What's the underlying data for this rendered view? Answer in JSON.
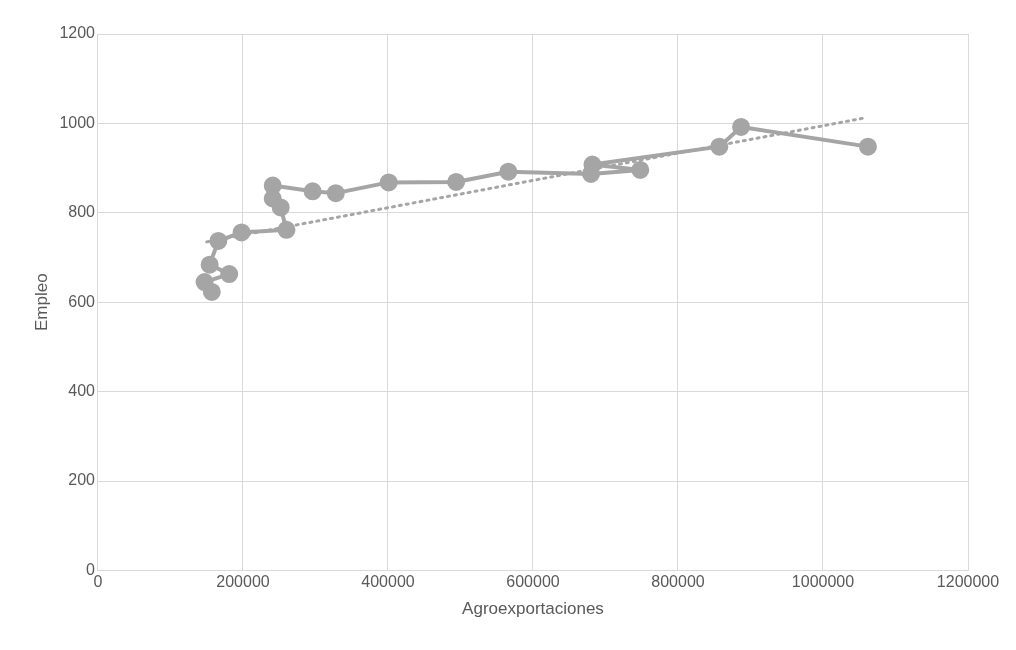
{
  "chart_data": {
    "type": "line",
    "xlabel": "Agroexportaciones",
    "ylabel": "Empleo",
    "xlim": [
      0,
      1200000
    ],
    "ylim": [
      0,
      1200
    ],
    "xticks": [
      0,
      200000,
      400000,
      600000,
      800000,
      1000000,
      1200000
    ],
    "yticks": [
      0,
      200,
      400,
      600,
      800,
      1000,
      1200
    ],
    "grid": true,
    "legend": false,
    "marker": "circle",
    "line_style": "solid",
    "series": [
      {
        "color": "#a5a5a5",
        "x": [
          157000,
          147000,
          181000,
          154000,
          166000,
          198000,
          260000,
          252000,
          241000,
          241000,
          296000,
          328000,
          401000,
          494000,
          566000,
          680000,
          748000,
          682000,
          857000,
          887000,
          1062000
        ],
        "values": [
          623,
          645,
          663,
          684,
          737,
          756,
          762,
          812,
          832,
          861,
          848,
          844,
          868,
          869,
          892,
          887,
          896,
          908,
          948,
          992,
          948
        ]
      },
      {
        "type": "line",
        "color": "#a5a5a5",
        "marker": "none",
        "line_style": "dotted",
        "x": [
          150000,
          1060000
        ],
        "values": [
          735,
          1013
        ]
      }
    ]
  }
}
